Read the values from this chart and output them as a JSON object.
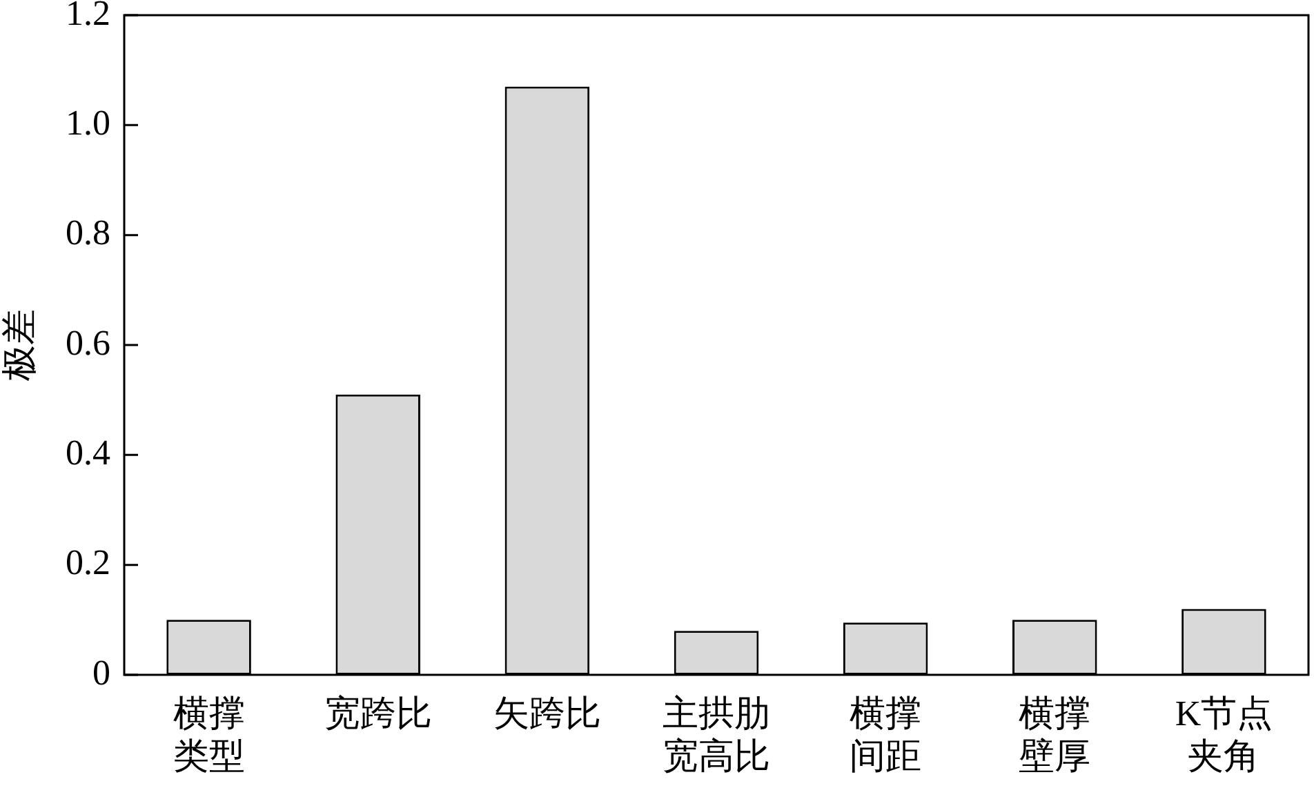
{
  "chart_data": {
    "type": "bar",
    "ylabel": "极差",
    "categories": [
      "横撑类型",
      "宽跨比",
      "矢跨比",
      "主拱肋宽高比",
      "横撑间距",
      "横撑壁厚",
      "K节点夹角"
    ],
    "values": [
      0.1,
      0.51,
      1.07,
      0.08,
      0.095,
      0.1,
      0.12
    ],
    "color": "#d9d9d9",
    "ylim": [
      0,
      1.2
    ],
    "yticks": [
      {
        "value": 0,
        "label": "0"
      },
      0.2,
      0.4,
      0.6,
      0.8,
      {
        "value": 1,
        "label": "1.0"
      },
      1.2
    ],
    "grid": false,
    "legend": false
  }
}
